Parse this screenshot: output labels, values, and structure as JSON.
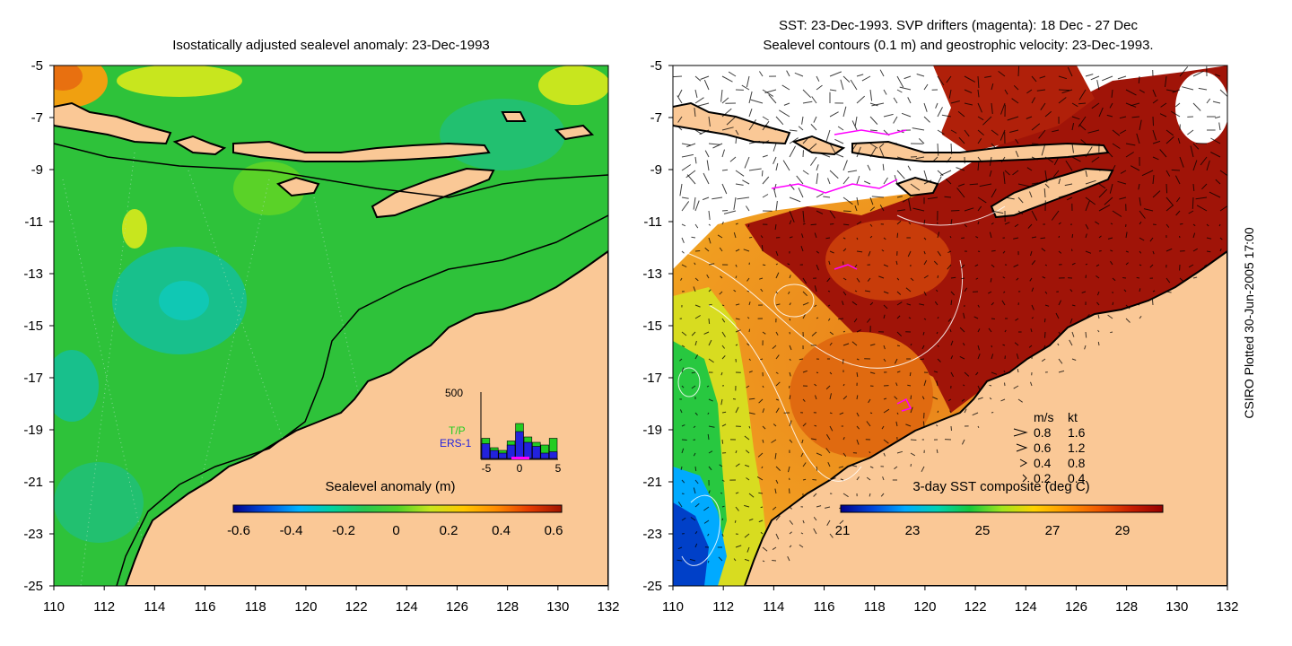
{
  "left_panel": {
    "title": "Isostatically adjusted sealevel anomaly: 23-Dec-1993",
    "colorbar": {
      "label": "Sealevel anomaly (m)",
      "ticks": [
        "-0.6",
        "-0.4",
        "-0.2",
        "0",
        "0.2",
        "0.4",
        "0.6"
      ],
      "stops": [
        "#00008c",
        "#0050e0",
        "#00b4ff",
        "#00d2a0",
        "#28c850",
        "#50d228",
        "#c8e61e",
        "#ffc800",
        "#ff8c00",
        "#e63c00",
        "#a01400"
      ]
    },
    "histogram": {
      "ymax_label": "500",
      "x_ticks": [
        "-5",
        "0",
        "5"
      ],
      "series": [
        {
          "name": "T/P",
          "color": "#22cc22",
          "values": [
            150,
            80,
            60,
            130,
            260,
            160,
            120,
            100,
            150
          ]
        },
        {
          "name": "ERS-1",
          "color": "#2222dd",
          "values": [
            110,
            60,
            40,
            100,
            200,
            120,
            90,
            40,
            50
          ]
        }
      ]
    }
  },
  "right_panel": {
    "title_line1": "SST: 23-Dec-1993. SVP drifters (magenta): 18 Dec - 27 Dec",
    "title_line2": "Sealevel contours (0.1 m) and geostrophic velocity: 23-Dec-1993.",
    "colorbar": {
      "label": "3-day SST composite (deg C)",
      "ticks": [
        "21",
        "23",
        "25",
        "27",
        "29"
      ],
      "stops": [
        "#00008c",
        "#0046dc",
        "#00aaff",
        "#00d2b4",
        "#14c83c",
        "#a0e61e",
        "#ffd200",
        "#ff9600",
        "#f05a00",
        "#c81e00",
        "#960000"
      ]
    },
    "velocity_legend": {
      "header_ms": "m/s",
      "header_kt": "kt",
      "rows": [
        {
          "ms": "0.8",
          "kt": "1.6"
        },
        {
          "ms": "0.6",
          "kt": "1.2"
        },
        {
          "ms": "0.4",
          "kt": "0.8"
        },
        {
          "ms": "0.2",
          "kt": "0.4"
        }
      ]
    }
  },
  "axes": {
    "x_ticks": [
      "110",
      "112",
      "114",
      "116",
      "118",
      "120",
      "122",
      "124",
      "126",
      "128",
      "130",
      "132"
    ],
    "y_ticks": [
      "-5",
      "-7",
      "-9",
      "-11",
      "-13",
      "-15",
      "-17",
      "-19",
      "-21",
      "-23",
      "-25"
    ]
  },
  "credit": "CSIRO Plotted 30-Jun-2005 17:00",
  "colors": {
    "land": "#fac896",
    "ocean_left": "#2ec23a",
    "ocean_right_warm": "#e07010"
  }
}
